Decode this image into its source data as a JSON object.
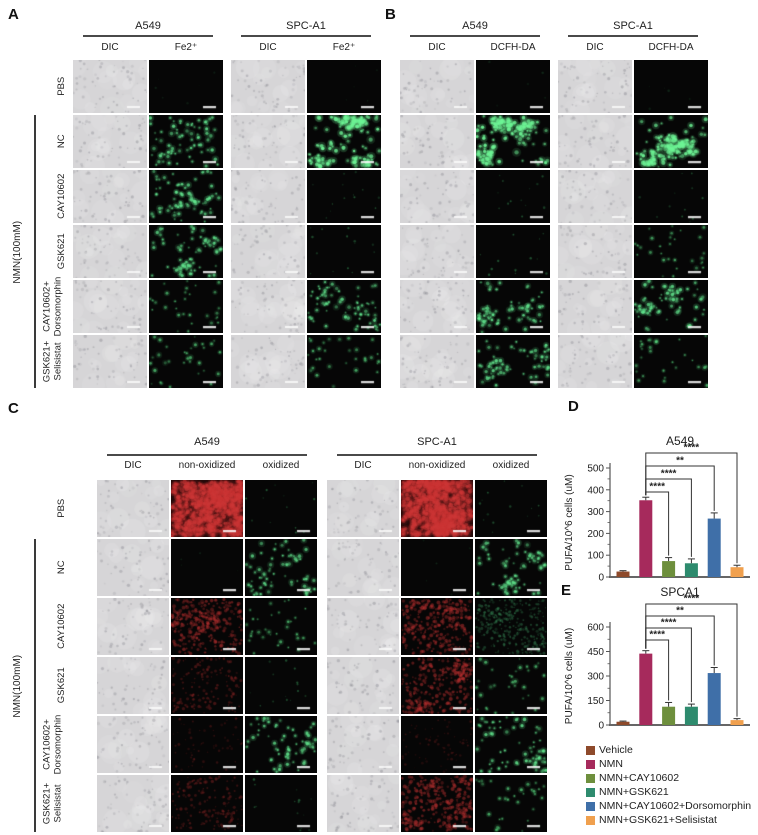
{
  "panels": {
    "A": {
      "letter": "A",
      "cell_line_groups": [
        "A549",
        "SPC-A1"
      ],
      "columns": [
        "DIC",
        "Fe2⁺",
        "DIC",
        "Fe2⁺"
      ],
      "treatment_bracket": "NMN(100mM)",
      "rows": [
        {
          "label": [
            "PBS"
          ],
          "in_bracket": false,
          "cells": [
            "dic",
            "dark",
            "dic",
            "dark"
          ]
        },
        {
          "label": [
            "NC"
          ],
          "in_bracket": true,
          "cells": [
            "dic",
            "green-med",
            "dic",
            "green-high"
          ]
        },
        {
          "label": [
            "CAY10602"
          ],
          "in_bracket": true,
          "cells": [
            "dic",
            "green-med",
            "dic",
            "green-vlow"
          ]
        },
        {
          "label": [
            "GSK621"
          ],
          "in_bracket": true,
          "cells": [
            "dic",
            "green-med",
            "dic",
            "green-vlow"
          ]
        },
        {
          "label": [
            "CAY10602+",
            "Dorsomorphin"
          ],
          "in_bracket": true,
          "cells": [
            "dic",
            "green-low",
            "dic",
            "green-med"
          ]
        },
        {
          "label": [
            "GSK621+",
            "Selisistat"
          ],
          "in_bracket": true,
          "cells": [
            "dic",
            "green-low",
            "dic",
            "green-low"
          ]
        }
      ]
    },
    "B": {
      "letter": "B",
      "cell_line_groups": [
        "A549",
        "SPC-A1"
      ],
      "columns": [
        "DIC",
        "DCFH-DA",
        "DIC",
        "DCFH-DA"
      ],
      "rows": [
        {
          "label": [
            "PBS"
          ],
          "cells": [
            "dic",
            "dark",
            "dic",
            "dark"
          ]
        },
        {
          "label": [
            "NC"
          ],
          "cells": [
            "dic",
            "green-high",
            "dic",
            "green-high"
          ]
        },
        {
          "label": [
            "CAY10602"
          ],
          "cells": [
            "dic",
            "green-vlow",
            "dic",
            "green-vlow"
          ]
        },
        {
          "label": [
            "GSK621"
          ],
          "cells": [
            "dic",
            "green-vlow",
            "dic",
            "green-low"
          ]
        },
        {
          "label": [
            "CAY10602+",
            "Dorsomorphin"
          ],
          "cells": [
            "dic",
            "green-med",
            "dic",
            "green-med"
          ]
        },
        {
          "label": [
            "GSK621+",
            "Selisistat"
          ],
          "cells": [
            "dic",
            "green-med",
            "dic",
            "green-low"
          ]
        }
      ]
    },
    "C": {
      "letter": "C",
      "cell_line_groups": [
        "A549",
        "SPC-A1"
      ],
      "columns": [
        "DIC",
        "non-oxidized",
        "oxidized",
        "DIC",
        "non-oxidized",
        "oxidized"
      ],
      "treatment_bracket": "NMN(100mM)",
      "rows": [
        {
          "label": [
            "PBS"
          ],
          "in_bracket": false,
          "cells": [
            "dic",
            "red-high",
            "green-vlow",
            "dic",
            "red-high",
            "green-vlow"
          ]
        },
        {
          "label": [
            "NC"
          ],
          "in_bracket": true,
          "cells": [
            "dic",
            "dark",
            "green-med",
            "dic",
            "dark",
            "green-med"
          ]
        },
        {
          "label": [
            "CAY10602"
          ],
          "in_bracket": true,
          "cells": [
            "dic",
            "red-med",
            "green-low",
            "dic",
            "red-med",
            "green-dense-dim"
          ]
        },
        {
          "label": [
            "GSK621"
          ],
          "in_bracket": true,
          "cells": [
            "dic",
            "red-low",
            "green-vlow",
            "dic",
            "red-med",
            "green-low"
          ]
        },
        {
          "label": [
            "CAY10602+",
            "Dorsomorphin"
          ],
          "in_bracket": true,
          "cells": [
            "dic",
            "red-vlow",
            "green-med",
            "dic",
            "red-vlow",
            "green-med"
          ]
        },
        {
          "label": [
            "GSK621+",
            "Selisistat"
          ],
          "in_bracket": true,
          "cells": [
            "dic",
            "red-low",
            "green-vlow",
            "dic",
            "red-med",
            "green-low"
          ]
        }
      ]
    }
  },
  "chart_data": [
    {
      "type": "bar",
      "panel_letter": "D",
      "title": "A549",
      "ylabel": "PUFA/10^6 cells (uM)",
      "ylim": [
        0,
        500
      ],
      "yticks": [
        0,
        100,
        200,
        300,
        400,
        500
      ],
      "categories": [
        "Vehicle",
        "NMN",
        "NMN+CAY10602",
        "NMN+GSK621",
        "NMN+CAY10602+Dorsomorphin",
        "NMN+GSK621+Selisistat"
      ],
      "values": [
        25,
        352,
        73,
        63,
        268,
        45
      ],
      "errors": [
        4,
        14,
        16,
        20,
        26,
        9
      ],
      "bar_colors": [
        "#8e4a2b",
        "#a62a5c",
        "#6e8f3d",
        "#2e8b6e",
        "#3f6fa8",
        "#f0a04e"
      ],
      "significance": [
        {
          "from": "NMN",
          "to": "NMN+CAY10602",
          "label": "****"
        },
        {
          "from": "NMN",
          "to": "NMN+GSK621",
          "label": "****"
        },
        {
          "from": "NMN",
          "to": "NMN+CAY10602+Dorsomorphin",
          "label": "**"
        },
        {
          "from": "NMN",
          "to": "NMN+GSK621+Selisistat",
          "label": "****"
        }
      ]
    },
    {
      "type": "bar",
      "panel_letter": "E",
      "title": "SPCA1",
      "ylabel": "PUFA/10^6 cells (uM)",
      "ylim": [
        0,
        600
      ],
      "yticks": [
        0,
        150,
        300,
        450,
        600
      ],
      "categories": [
        "Vehicle",
        "NMN",
        "NMN+CAY10602",
        "NMN+GSK621",
        "NMN+CAY10602+Dorsomorphin",
        "NMN+GSK621+Selisistat"
      ],
      "values": [
        20,
        437,
        112,
        112,
        318,
        30
      ],
      "errors": [
        4,
        18,
        26,
        16,
        34,
        9
      ],
      "bar_colors": [
        "#8e4a2b",
        "#a62a5c",
        "#6e8f3d",
        "#2e8b6e",
        "#3f6fa8",
        "#f0a04e"
      ],
      "significance": [
        {
          "from": "NMN",
          "to": "NMN+CAY10602",
          "label": "****"
        },
        {
          "from": "NMN",
          "to": "NMN+GSK621",
          "label": "****"
        },
        {
          "from": "NMN",
          "to": "NMN+CAY10602+Dorsomorphin",
          "label": "**"
        },
        {
          "from": "NMN",
          "to": "NMN+GSK621+Selisistat",
          "label": "****"
        }
      ]
    }
  ],
  "legend": {
    "items": [
      {
        "label": "Vehicle",
        "color": "#8e4a2b"
      },
      {
        "label": "NMN",
        "color": "#a62a5c"
      },
      {
        "label": "NMN+CAY10602",
        "color": "#6e8f3d"
      },
      {
        "label": "NMN+GSK621",
        "color": "#2e8b6e"
      },
      {
        "label": "NMN+CAY10602+Dorsomorphin",
        "color": "#3f6fa8"
      },
      {
        "label": "NMN+GSK621+Selisistat",
        "color": "#f0a04e"
      }
    ]
  }
}
